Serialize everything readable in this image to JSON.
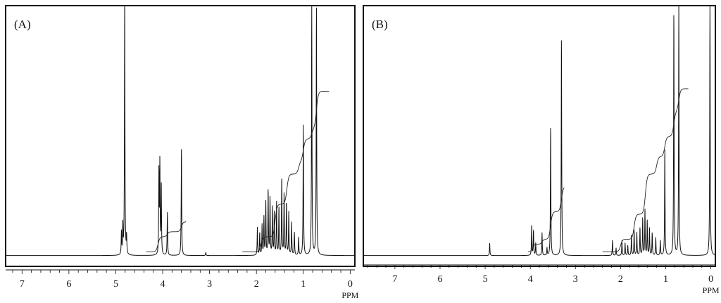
{
  "chart_data": [
    {
      "type": "line",
      "panel_label": "(A)",
      "xlabel": "PPM",
      "xlim": [
        7.35,
        -0.1
      ],
      "x_reversed": true,
      "tick_labels": [
        "7",
        "6",
        "5",
        "4",
        "3",
        "2",
        "1",
        "0"
      ],
      "tick_values": [
        7,
        6,
        5,
        4,
        3,
        2,
        1,
        0
      ],
      "ylim": [
        0,
        1
      ],
      "baseline": 0.015,
      "peaks": [
        {
          "ppm": 4.88,
          "height": 0.09
        },
        {
          "ppm": 4.85,
          "height": 0.12
        },
        {
          "ppm": 4.81,
          "height": 1.05
        },
        {
          "ppm": 4.77,
          "height": 0.07
        },
        {
          "ppm": 4.08,
          "height": 0.33
        },
        {
          "ppm": 4.06,
          "height": 0.36
        },
        {
          "ppm": 4.03,
          "height": 0.28
        },
        {
          "ppm": 3.9,
          "height": 0.17
        },
        {
          "ppm": 3.6,
          "height": 0.43
        },
        {
          "ppm": 3.08,
          "height": 0.012
        },
        {
          "ppm": 1.98,
          "height": 0.11
        },
        {
          "ppm": 1.93,
          "height": 0.09
        },
        {
          "ppm": 1.88,
          "height": 0.12
        },
        {
          "ppm": 1.84,
          "height": 0.15
        },
        {
          "ppm": 1.8,
          "height": 0.21
        },
        {
          "ppm": 1.75,
          "height": 0.26
        },
        {
          "ppm": 1.71,
          "height": 0.23
        },
        {
          "ppm": 1.66,
          "height": 0.19
        },
        {
          "ppm": 1.62,
          "height": 0.17
        },
        {
          "ppm": 1.57,
          "height": 0.21
        },
        {
          "ppm": 1.52,
          "height": 0.19
        },
        {
          "ppm": 1.46,
          "height": 0.31
        },
        {
          "ppm": 1.41,
          "height": 0.24
        },
        {
          "ppm": 1.36,
          "height": 0.21
        },
        {
          "ppm": 1.31,
          "height": 0.17
        },
        {
          "ppm": 1.25,
          "height": 0.13
        },
        {
          "ppm": 1.19,
          "height": 0.09
        },
        {
          "ppm": 1.1,
          "height": 0.07
        },
        {
          "ppm": 1.0,
          "height": 0.52
        },
        {
          "ppm": 0.82,
          "height": 1.0
        },
        {
          "ppm": 0.72,
          "height": 0.99
        }
      ],
      "integral_segments": [
        {
          "start": 4.35,
          "end": 3.5,
          "steps": [
            {
              "ppm": 4.1,
              "rise": 0.06
            },
            {
              "ppm": 3.9,
              "rise": 0.02
            },
            {
              "ppm": 3.6,
              "rise": 0.04
            }
          ],
          "base": 0.03
        },
        {
          "start": 2.3,
          "end": 0.45,
          "steps": [
            {
              "ppm": 1.9,
              "rise": 0.06
            },
            {
              "ppm": 1.6,
              "rise": 0.13
            },
            {
              "ppm": 1.35,
              "rise": 0.12
            },
            {
              "ppm": 1.1,
              "rise": 0.05
            },
            {
              "ppm": 1.0,
              "rise": 0.09
            },
            {
              "ppm": 0.82,
              "rise": 0.04
            },
            {
              "ppm": 0.72,
              "rise": 0.15
            }
          ],
          "base": 0.03
        }
      ]
    },
    {
      "type": "line",
      "panel_label": "(B)",
      "xlabel": "PPM",
      "xlim": [
        7.7,
        -0.1
      ],
      "x_reversed": true,
      "tick_labels": [
        "7",
        "6",
        "5",
        "4",
        "3",
        "2",
        "1",
        "0"
      ],
      "tick_values": [
        7,
        6,
        5,
        4,
        3,
        2,
        1,
        0
      ],
      "ylim": [
        0,
        1
      ],
      "baseline": 0.015,
      "peaks": [
        {
          "ppm": 4.9,
          "height": 0.05
        },
        {
          "ppm": 3.97,
          "height": 0.12
        },
        {
          "ppm": 3.93,
          "height": 0.1
        },
        {
          "ppm": 3.88,
          "height": 0.05
        },
        {
          "ppm": 3.74,
          "height": 0.09
        },
        {
          "ppm": 3.63,
          "height": 0.03
        },
        {
          "ppm": 3.55,
          "height": 0.52
        },
        {
          "ppm": 3.31,
          "height": 0.88
        },
        {
          "ppm": 2.18,
          "height": 0.06
        },
        {
          "ppm": 2.1,
          "height": 0.03
        },
        {
          "ppm": 1.97,
          "height": 0.06
        },
        {
          "ppm": 1.9,
          "height": 0.05
        },
        {
          "ppm": 1.84,
          "height": 0.04
        },
        {
          "ppm": 1.76,
          "height": 0.08
        },
        {
          "ppm": 1.7,
          "height": 0.1
        },
        {
          "ppm": 1.64,
          "height": 0.09
        },
        {
          "ppm": 1.57,
          "height": 0.11
        },
        {
          "ppm": 1.51,
          "height": 0.15
        },
        {
          "ppm": 1.46,
          "height": 0.18
        },
        {
          "ppm": 1.41,
          "height": 0.14
        },
        {
          "ppm": 1.36,
          "height": 0.11
        },
        {
          "ppm": 1.3,
          "height": 0.09
        },
        {
          "ppm": 1.22,
          "height": 0.07
        },
        {
          "ppm": 1.12,
          "height": 0.06
        },
        {
          "ppm": 1.02,
          "height": 0.43
        },
        {
          "ppm": 0.82,
          "height": 0.98
        },
        {
          "ppm": 0.71,
          "height": 1.0
        },
        {
          "ppm": 0.02,
          "height": 1.04
        }
      ],
      "integral_segments": [
        {
          "start": 4.05,
          "end": 3.25,
          "steps": [
            {
              "ppm": 3.95,
              "rise": 0.03
            },
            {
              "ppm": 3.74,
              "rise": 0.02
            },
            {
              "ppm": 3.55,
              "rise": 0.11
            },
            {
              "ppm": 3.31,
              "rise": 0.1
            }
          ],
          "base": 0.03
        },
        {
          "start": 2.4,
          "end": 0.5,
          "steps": [
            {
              "ppm": 2.0,
              "rise": 0.05
            },
            {
              "ppm": 1.7,
              "rise": 0.1
            },
            {
              "ppm": 1.45,
              "rise": 0.16
            },
            {
              "ppm": 1.2,
              "rise": 0.07
            },
            {
              "ppm": 1.02,
              "rise": 0.08
            },
            {
              "ppm": 0.82,
              "rise": 0.1
            },
            {
              "ppm": 0.71,
              "rise": 0.09
            }
          ],
          "base": 0.03
        }
      ]
    }
  ]
}
